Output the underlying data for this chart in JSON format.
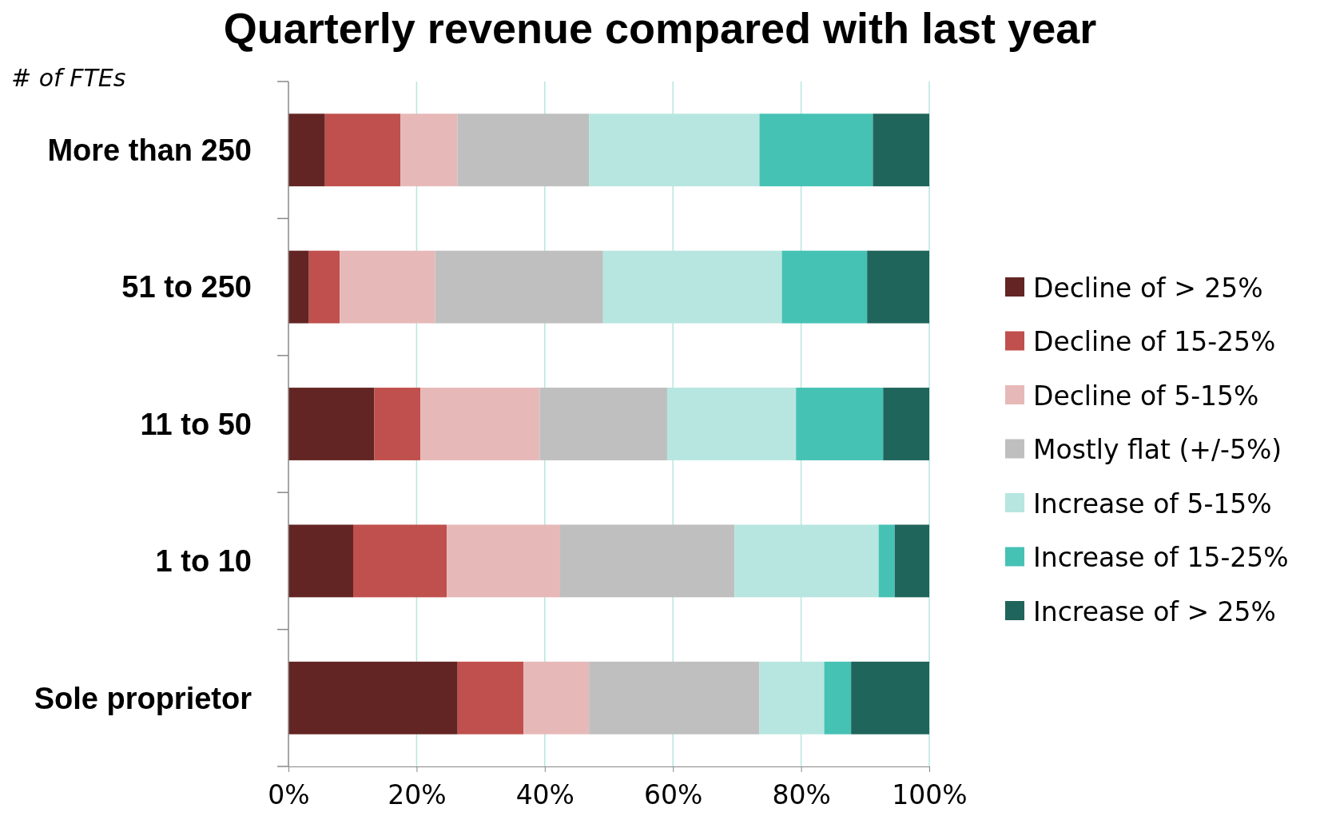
{
  "chart_data": {
    "type": "bar",
    "orientation": "horizontal",
    "stacked": true,
    "title": "Quarterly revenue compared with last year",
    "ylabel": "# of FTEs",
    "categories": [
      "More than 250",
      "51 to 250",
      "11 to 50",
      "1 to 10",
      "Sole proprietor"
    ],
    "series": [
      {
        "name": "Decline of > 25%",
        "color": "#632523",
        "values": [
          5.7,
          3.2,
          13.4,
          10.1,
          26.4
        ]
      },
      {
        "name": "Decline of 15-25%",
        "color": "#c0504d",
        "values": [
          11.8,
          4.8,
          7.2,
          14.6,
          10.3
        ]
      },
      {
        "name": "Decline of 5-15%",
        "color": "#e6b9b8",
        "values": [
          8.9,
          14.9,
          18.6,
          17.7,
          10.2
        ]
      },
      {
        "name": "Mostly flat (+/-5%)",
        "color": "#bfbfbf",
        "values": [
          20.5,
          26.2,
          19.9,
          27.2,
          26.6
        ]
      },
      {
        "name": "Increase of 5-15%",
        "color": "#b7e6e0",
        "values": [
          26.6,
          27.9,
          20.1,
          22.5,
          10.1
        ]
      },
      {
        "name": "Increase of 15-25%",
        "color": "#46c2b4",
        "values": [
          17.7,
          13.3,
          13.6,
          2.5,
          4.2
        ]
      },
      {
        "name": "Increase of > 25%",
        "color": "#1f655c",
        "values": [
          8.8,
          9.7,
          7.2,
          5.4,
          12.2
        ]
      }
    ],
    "xlim": [
      0,
      100
    ],
    "xticks": [
      {
        "value": 0,
        "label": "0%"
      },
      {
        "value": 20,
        "label": "20%"
      },
      {
        "value": 40,
        "label": "40%"
      },
      {
        "value": 60,
        "label": "60%"
      },
      {
        "value": 80,
        "label": "80%"
      },
      {
        "value": 100,
        "label": "100%"
      }
    ],
    "grid": "x",
    "legend": "right"
  }
}
